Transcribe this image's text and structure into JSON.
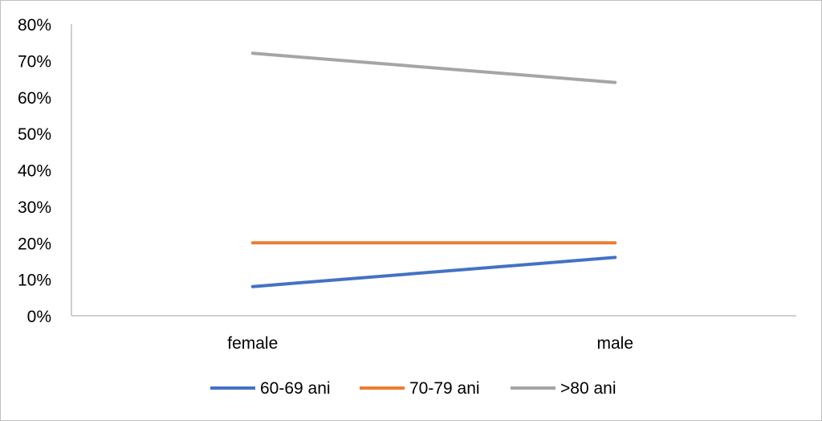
{
  "chart_data": {
    "type": "line",
    "categories": [
      "female",
      "male"
    ],
    "series": [
      {
        "name": "60-69 ani",
        "values": [
          8,
          16
        ],
        "color": "#4472C4"
      },
      {
        "name": "70-79 ani",
        "values": [
          20,
          20
        ],
        "color": "#ED7D31"
      },
      {
        "name": ">80 ani",
        "values": [
          72,
          64
        ],
        "color": "#A5A5A5"
      }
    ],
    "ylim": [
      0,
      80
    ],
    "yticks": [
      "0%",
      "10%",
      "20%",
      "30%",
      "40%",
      "50%",
      "60%",
      "70%",
      "80%"
    ],
    "grid": false,
    "legend": "bottom"
  }
}
